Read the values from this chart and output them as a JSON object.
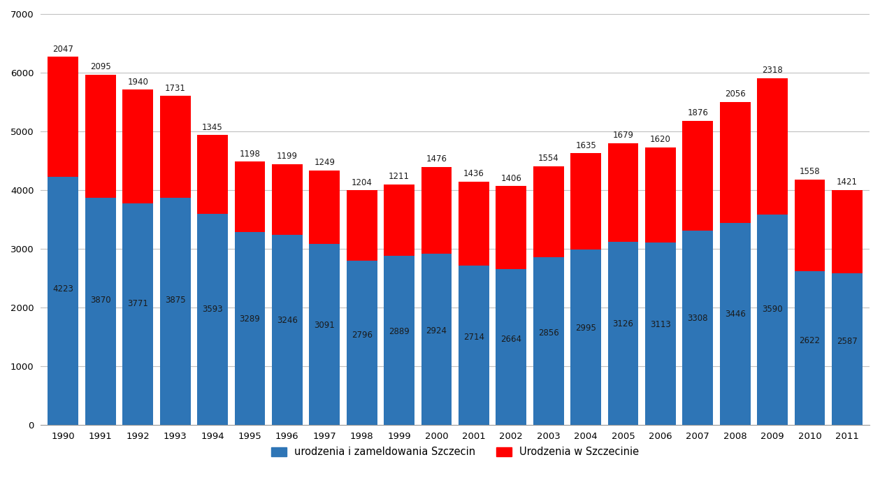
{
  "years": [
    1990,
    1991,
    1992,
    1993,
    1994,
    1995,
    1996,
    1997,
    1998,
    1999,
    2000,
    2001,
    2002,
    2003,
    2004,
    2005,
    2006,
    2007,
    2008,
    2009,
    2010,
    2011
  ],
  "blue_values": [
    4223,
    3870,
    3771,
    3875,
    3593,
    3289,
    3246,
    3091,
    2796,
    2889,
    2924,
    2714,
    2664,
    2856,
    2995,
    3126,
    3113,
    3308,
    3446,
    3590,
    2622,
    2587
  ],
  "red_values": [
    2047,
    2095,
    1940,
    1731,
    1345,
    1198,
    1199,
    1249,
    1204,
    1211,
    1476,
    1436,
    1406,
    1554,
    1635,
    1679,
    1620,
    1876,
    2056,
    2318,
    1558,
    1421
  ],
  "blue_color": "#2E75B6",
  "red_color": "#FF0000",
  "ylim": [
    0,
    7000
  ],
  "yticks": [
    0,
    1000,
    2000,
    3000,
    4000,
    5000,
    6000,
    7000
  ],
  "legend_blue": "urodzenia i zameldowania Szczecin",
  "legend_red": "Urodzenia w Szczecinie",
  "bg_color": "#ffffff",
  "grid_color": "#c0c0c0",
  "bar_width": 0.82,
  "label_fontsize": 8.5,
  "tick_fontsize": 9.5,
  "legend_fontsize": 10.5
}
